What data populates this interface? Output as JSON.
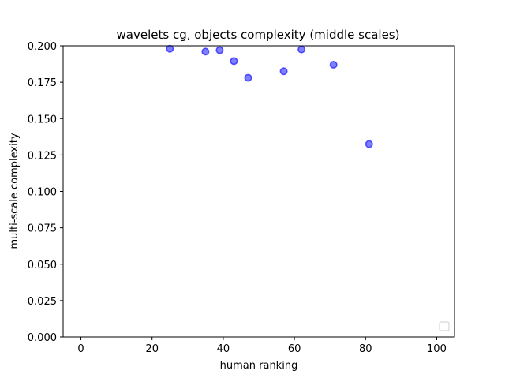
{
  "chart_data": {
    "type": "scatter",
    "title": "wavelets cg, objects complexity (middle scales)",
    "xlabel": "human ranking",
    "ylabel": "multi-scale complexity",
    "xlim": [
      -5,
      105
    ],
    "ylim": [
      0.0,
      0.2
    ],
    "x_ticks": [
      0,
      20,
      40,
      60,
      80,
      100
    ],
    "x_tick_labels": [
      "0",
      "20",
      "40",
      "60",
      "80",
      "100"
    ],
    "y_ticks": [
      0.0,
      0.025,
      0.05,
      0.075,
      0.1,
      0.125,
      0.15,
      0.175,
      0.2
    ],
    "y_tick_labels": [
      "0.000",
      "0.025",
      "0.050",
      "0.075",
      "0.100",
      "0.125",
      "0.150",
      "0.175",
      "0.200"
    ],
    "grid": false,
    "legend": {
      "placement": "bottom-right",
      "entries": []
    },
    "series": [
      {
        "color": "#0000ff",
        "points": [
          {
            "x": 25,
            "y": 0.198
          },
          {
            "x": 35,
            "y": 0.196
          },
          {
            "x": 39,
            "y": 0.197
          },
          {
            "x": 43,
            "y": 0.1895
          },
          {
            "x": 47,
            "y": 0.178
          },
          {
            "x": 57,
            "y": 0.1825
          },
          {
            "x": 62,
            "y": 0.1975
          },
          {
            "x": 71,
            "y": 0.187
          },
          {
            "x": 81,
            "y": 0.1325
          }
        ]
      }
    ]
  }
}
